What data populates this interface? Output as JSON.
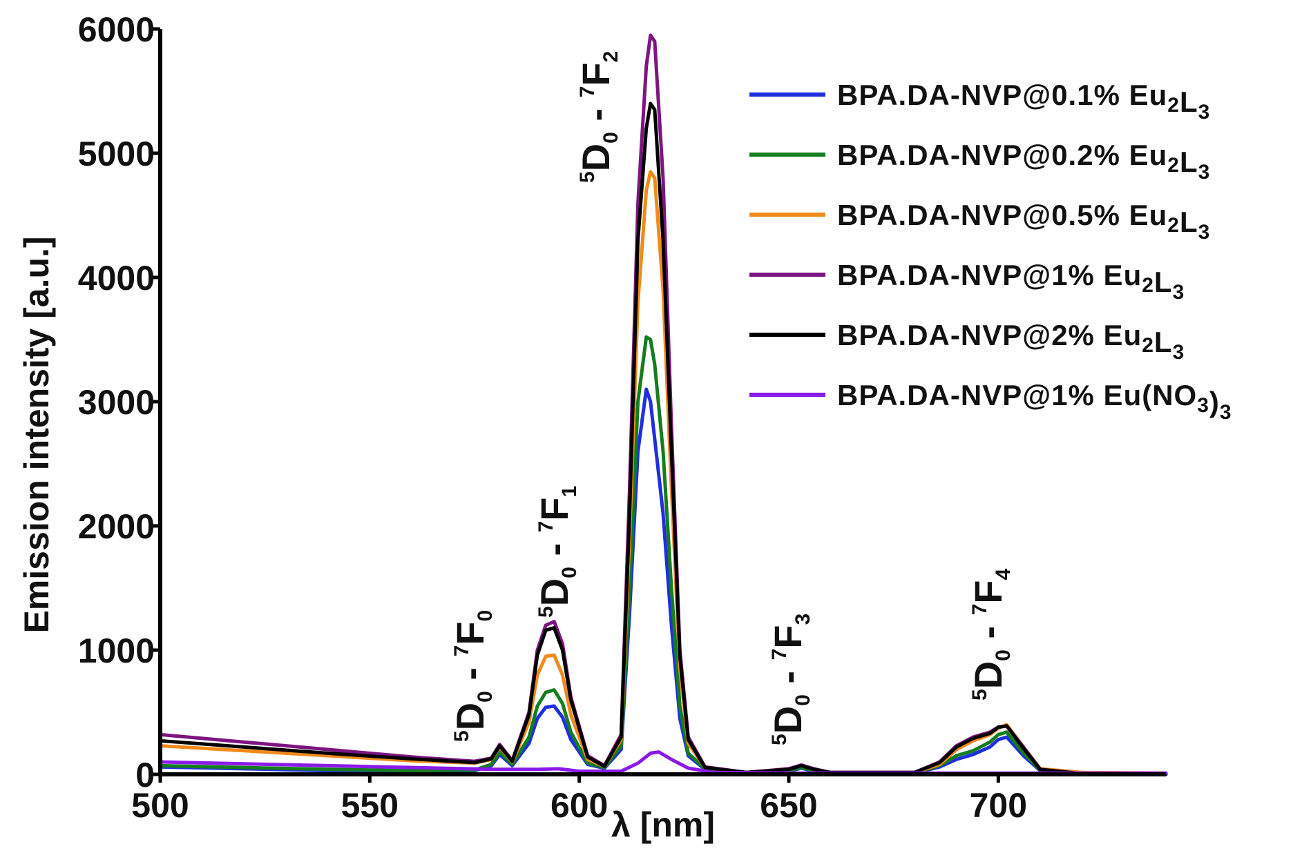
{
  "chart_data": {
    "type": "line",
    "title": "",
    "xlabel": "λ [nm]",
    "ylabel": "Emission intensity [a.u.]",
    "xlim": [
      500,
      740
    ],
    "ylim": [
      0,
      6000
    ],
    "xticks": [
      500,
      550,
      600,
      650,
      700
    ],
    "yticks": [
      0,
      1000,
      2000,
      3000,
      4000,
      5000,
      6000
    ],
    "grid": false,
    "legend_position": "top-right",
    "series": [
      {
        "name": "BPA.DA-NVP@0.1% Eu2L3",
        "legend": {
          "base": "BPA.DA-NVP@0.1% Eu",
          "sub1": "2",
          "mid": "L",
          "sub2": "3",
          "tail": "",
          "sub3": ""
        },
        "color": "#1f2fe0",
        "x": [
          500,
          520,
          540,
          560,
          575,
          579,
          581,
          584,
          588,
          590,
          592,
          594,
          596,
          598,
          602,
          606,
          610,
          612,
          614,
          616,
          617,
          618,
          620,
          622,
          624,
          626,
          630,
          640,
          650,
          653,
          656,
          660,
          680,
          686,
          690,
          694,
          698,
          700,
          702,
          706,
          710,
          720,
          740
        ],
        "y": [
          60,
          45,
          30,
          25,
          30,
          70,
          160,
          70,
          250,
          450,
          540,
          550,
          460,
          280,
          80,
          50,
          200,
          1300,
          2600,
          3100,
          3000,
          2700,
          2100,
          1200,
          450,
          150,
          40,
          10,
          25,
          50,
          25,
          10,
          10,
          60,
          120,
          160,
          220,
          280,
          300,
          150,
          30,
          5,
          0
        ]
      },
      {
        "name": "BPA.DA-NVP@0.2% Eu2L3",
        "legend": {
          "base": "BPA.DA-NVP@0.2% Eu",
          "sub1": "2",
          "mid": "L",
          "sub2": "3",
          "tail": "",
          "sub3": ""
        },
        "color": "#147d1e",
        "x": [
          500,
          520,
          540,
          560,
          575,
          579,
          581,
          584,
          588,
          590,
          592,
          594,
          596,
          598,
          602,
          606,
          610,
          612,
          614,
          616,
          617,
          618,
          620,
          622,
          624,
          626,
          630,
          640,
          650,
          653,
          656,
          660,
          680,
          686,
          690,
          694,
          698,
          700,
          702,
          706,
          710,
          720,
          740
        ],
        "y": [
          70,
          55,
          40,
          30,
          35,
          80,
          180,
          80,
          300,
          550,
          660,
          680,
          570,
          340,
          90,
          55,
          230,
          1500,
          3000,
          3520,
          3500,
          3300,
          2600,
          1500,
          550,
          170,
          45,
          10,
          30,
          55,
          30,
          10,
          12,
          70,
          150,
          190,
          260,
          320,
          340,
          170,
          35,
          5,
          0
        ]
      },
      {
        "name": "BPA.DA-NVP@0.5% Eu2L3",
        "legend": {
          "base": "BPA.DA-NVP@0.5% Eu",
          "sub1": "2",
          "mid": "L",
          "sub2": "3",
          "tail": "",
          "sub3": ""
        },
        "color": "#f08a1c",
        "x": [
          500,
          520,
          540,
          560,
          575,
          579,
          581,
          584,
          588,
          590,
          592,
          594,
          596,
          598,
          602,
          606,
          610,
          612,
          614,
          616,
          617,
          618,
          620,
          622,
          624,
          626,
          630,
          640,
          650,
          653,
          656,
          660,
          680,
          686,
          690,
          694,
          698,
          700,
          702,
          706,
          710,
          720,
          740
        ],
        "y": [
          230,
          190,
          150,
          110,
          90,
          120,
          220,
          100,
          420,
          800,
          950,
          960,
          800,
          480,
          120,
          65,
          280,
          1900,
          3800,
          4700,
          4850,
          4800,
          3900,
          2300,
          850,
          250,
          55,
          15,
          40,
          70,
          40,
          15,
          15,
          80,
          200,
          270,
          320,
          370,
          400,
          220,
          45,
          15,
          10
        ]
      },
      {
        "name": "BPA.DA-NVP@1% Eu2L3",
        "legend": {
          "base": "BPA.DA-NVP@1% Eu",
          "sub1": "2",
          "mid": "L",
          "sub2": "3",
          "tail": "",
          "sub3": ""
        },
        "color": "#7d1580",
        "x": [
          500,
          520,
          540,
          560,
          575,
          579,
          581,
          584,
          588,
          590,
          592,
          594,
          596,
          598,
          602,
          606,
          610,
          612,
          614,
          616,
          617,
          618,
          620,
          622,
          624,
          626,
          630,
          640,
          650,
          653,
          656,
          660,
          680,
          686,
          690,
          694,
          698,
          700,
          702,
          706,
          710,
          720,
          740
        ],
        "y": [
          320,
          260,
          200,
          140,
          105,
          130,
          240,
          110,
          500,
          1000,
          1200,
          1230,
          1050,
          620,
          150,
          70,
          320,
          2300,
          4600,
          5700,
          5950,
          5900,
          4800,
          2800,
          1000,
          300,
          60,
          15,
          45,
          75,
          45,
          15,
          15,
          100,
          230,
          300,
          340,
          380,
          390,
          220,
          40,
          5,
          0
        ]
      },
      {
        "name": "BPA.DA-NVP@2% Eu2L3",
        "legend": {
          "base": "BPA.DA-NVP@2% Eu",
          "sub1": "2",
          "mid": "L",
          "sub2": "3",
          "tail": "",
          "sub3": ""
        },
        "color": "#000000",
        "x": [
          500,
          520,
          540,
          560,
          575,
          579,
          581,
          584,
          588,
          590,
          592,
          594,
          596,
          598,
          602,
          606,
          610,
          612,
          614,
          616,
          617,
          618,
          620,
          622,
          624,
          626,
          630,
          640,
          650,
          653,
          656,
          660,
          680,
          686,
          690,
          694,
          698,
          700,
          702,
          706,
          710,
          720,
          740
        ],
        "y": [
          270,
          220,
          170,
          125,
          95,
          125,
          230,
          105,
          480,
          960,
          1160,
          1180,
          1000,
          600,
          140,
          65,
          300,
          2100,
          4300,
          5200,
          5400,
          5350,
          4300,
          2600,
          950,
          280,
          55,
          15,
          40,
          70,
          40,
          15,
          15,
          95,
          220,
          290,
          330,
          380,
          390,
          210,
          40,
          5,
          0
        ]
      },
      {
        "name": "BPA.DA-NVP@1% Eu(NO3)3",
        "legend": {
          "base": "BPA.DA-NVP@1% Eu(NO",
          "sub1": "3",
          "mid": ")",
          "sub2": "3",
          "tail": "",
          "sub3": ""
        },
        "color": "#8a1ae8",
        "x": [
          500,
          520,
          540,
          560,
          580,
          590,
          595,
          600,
          610,
          614,
          617,
          619,
          622,
          626,
          632,
          650,
          680,
          720,
          740
        ],
        "y": [
          100,
          85,
          70,
          55,
          40,
          40,
          45,
          25,
          25,
          90,
          170,
          180,
          120,
          50,
          15,
          10,
          10,
          10,
          10
        ]
      }
    ],
    "annotations": [
      {
        "id": "f0",
        "pre": "5",
        "d": "D",
        "dsub": "0",
        "dash": " - ",
        "sup": "7",
        "f": "F",
        "fsub": "0"
      },
      {
        "id": "f1",
        "pre": "5",
        "d": "D",
        "dsub": "0",
        "dash": " - ",
        "sup": "7",
        "f": "F",
        "fsub": "1"
      },
      {
        "id": "f2",
        "pre": "5",
        "d": "D",
        "dsub": "0",
        "dash": " - ",
        "sup": "7",
        "f": "F",
        "fsub": "2"
      },
      {
        "id": "f3",
        "pre": "5",
        "d": "D",
        "dsub": "0",
        "dash": " - ",
        "sup": "7",
        "f": "F",
        "fsub": "3"
      },
      {
        "id": "f4",
        "pre": "5",
        "d": "D",
        "dsub": "0",
        "dash": " - ",
        "sup": "7",
        "f": "F",
        "fsub": "4"
      }
    ]
  }
}
